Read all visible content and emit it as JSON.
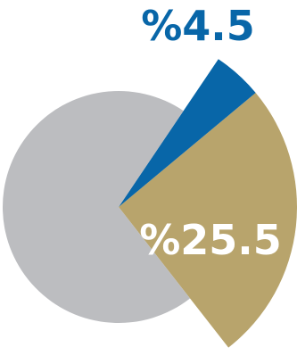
{
  "chart_data": {
    "type": "pie",
    "slices": [
      {
        "label": "%25.5",
        "value": 25.5,
        "color": "#b8a46c",
        "exploded": true,
        "label_color": "#ffffff",
        "label_inside": true
      },
      {
        "label": "%4.5",
        "value": 4.5,
        "color": "#0866a8",
        "exploded": true,
        "label_color": "#0866a8",
        "label_inside": false
      },
      {
        "label": "",
        "value": 70.0,
        "color": "#bcbdc0",
        "exploded": false
      }
    ],
    "start_angle_deg": 90,
    "direction": "counterclockwise"
  }
}
